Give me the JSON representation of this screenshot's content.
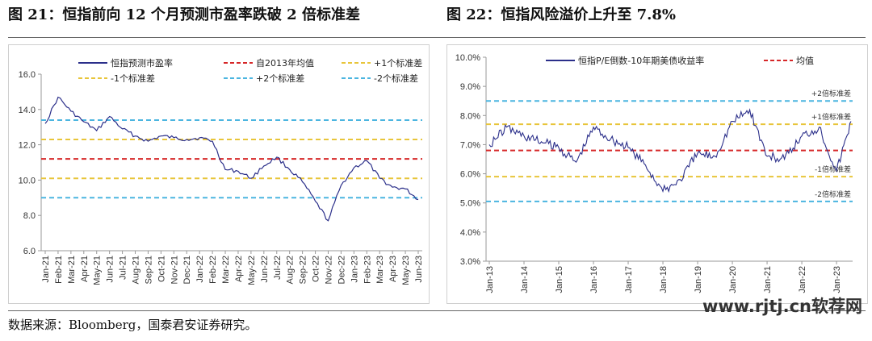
{
  "titles": {
    "left": "图 21：恒指前向 12 个月预测市盈率跌破 2 倍标准差",
    "right": "图 22：恒指风险溢价上升至 7.8%"
  },
  "source": "数据来源：Bloomberg，国泰君安证券研究。",
  "watermark": "www.rjtj.cn软荐网",
  "colors": {
    "series": "#2b2f8a",
    "mean": "#d62728",
    "sd1": "#e8c53a",
    "sd2": "#4bb5e0"
  },
  "chart_data": [
    {
      "type": "line",
      "ylim": [
        6.0,
        16.0
      ],
      "yticks": [
        "6.0",
        "8.0",
        "10.0",
        "12.0",
        "14.0",
        "16.0"
      ],
      "xticks": [
        "Jan-21",
        "Feb-21",
        "Mar-21",
        "Apr-21",
        "May-21",
        "Jun-21",
        "Jul-21",
        "Aug-21",
        "Sep-21",
        "Oct-21",
        "Nov-21",
        "Dec-21",
        "Jan-22",
        "Feb-22",
        "Mar-22",
        "Apr-22",
        "May-22",
        "Jun-22",
        "Jul-22",
        "Aug-22",
        "Sep-22",
        "Oct-22",
        "Nov-22",
        "Dec-22",
        "Jan-23",
        "Feb-23",
        "Mar-23",
        "Apr-23",
        "May-23",
        "Jun-23"
      ],
      "legend_position": "top",
      "series": [
        {
          "name": "恒指预测市盈率",
          "style": "solid",
          "x": [
            "Jan-21",
            "Feb-21",
            "Mar-21",
            "Apr-21",
            "May-21",
            "Jun-21",
            "Jul-21",
            "Aug-21",
            "Sep-21",
            "Oct-21",
            "Nov-21",
            "Dec-21",
            "Jan-22",
            "Feb-22",
            "Mar-22",
            "Apr-22",
            "May-22",
            "Jun-22",
            "Jul-22",
            "Aug-22",
            "Sep-22",
            "Oct-22",
            "Nov-22",
            "Dec-22",
            "Jan-23",
            "Feb-23",
            "Mar-23",
            "Apr-23",
            "May-23",
            "Jun-23"
          ],
          "values": [
            13.2,
            14.7,
            13.9,
            13.3,
            12.8,
            13.6,
            12.9,
            12.5,
            12.2,
            12.5,
            12.4,
            12.3,
            12.4,
            12.2,
            10.6,
            10.5,
            10.1,
            10.8,
            11.3,
            10.6,
            9.9,
            8.8,
            7.7,
            9.7,
            10.7,
            11.1,
            10.1,
            9.6,
            9.5,
            8.9
          ]
        },
        {
          "name": "自2013年均值",
          "style": "dashed",
          "value": 11.2
        },
        {
          "name": "+1个标准差",
          "style": "dashed",
          "value": 12.3
        },
        {
          "name": "-1个标准差",
          "style": "dashed",
          "value": 10.1
        },
        {
          "name": "+2个标准差",
          "style": "dashed",
          "value": 13.4
        },
        {
          "name": "-2个标准差",
          "style": "dashed",
          "value": 9.0
        }
      ]
    },
    {
      "type": "line",
      "ylim": [
        3.0,
        10.0
      ],
      "yticks": [
        "3.0%",
        "4.0%",
        "5.0%",
        "6.0%",
        "7.0%",
        "8.0%",
        "9.0%",
        "10.0%"
      ],
      "xticks": [
        "Jan-13",
        "Jan-14",
        "Jan-15",
        "Jan-16",
        "Jan-17",
        "Jan-18",
        "Jan-19",
        "Jan-20",
        "Jan-21",
        "Jan-22",
        "Jan-23"
      ],
      "legend_position": "top",
      "series": [
        {
          "name": "恒指P/E倒数-10年期美债收益率",
          "style": "solid",
          "x": [
            "Jan-13",
            "Jul-13",
            "Jan-14",
            "Jul-14",
            "Jan-15",
            "Jul-15",
            "Jan-16",
            "Jul-16",
            "Jan-17",
            "Jul-17",
            "Jan-18",
            "Jul-18",
            "Jan-19",
            "Jul-19",
            "Jan-20",
            "Jul-20",
            "Jan-21",
            "Jul-21",
            "Jan-22",
            "Jul-22",
            "Jan-23",
            "Jun-23"
          ],
          "values": [
            7.0,
            7.6,
            7.3,
            7.1,
            6.9,
            6.4,
            7.6,
            7.2,
            6.9,
            6.3,
            5.4,
            5.8,
            6.7,
            6.6,
            7.8,
            8.2,
            6.6,
            6.5,
            7.3,
            7.6,
            6.1,
            7.8
          ]
        },
        {
          "name": "均值",
          "style": "dashed",
          "value": 6.8
        }
      ],
      "bands": [
        {
          "label": "+2倍标准差",
          "value": 8.5
        },
        {
          "label": "+1倍标准差",
          "value": 7.7
        },
        {
          "label": "-1倍标准差",
          "value": 5.9
        },
        {
          "label": "-2倍标准差",
          "value": 5.05
        }
      ]
    }
  ]
}
